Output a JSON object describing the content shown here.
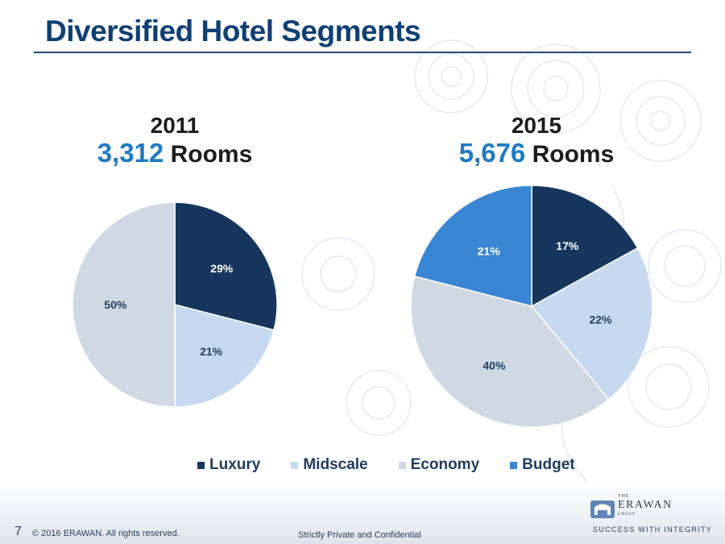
{
  "slide": {
    "title": "Diversified Hotel Segments",
    "page_number": "7",
    "copyright": "© 2016 ERAWAN. All rights reserved.",
    "confidential": "Strictly Private and Confidential"
  },
  "logo": {
    "the": "THE",
    "name": "ERAWAN",
    "group": "GROUP",
    "tagline": "SUCCESS WITH INTEGRITY"
  },
  "colors": {
    "Luxury": "#17365d",
    "Midscale": "#c6d9f1",
    "Economy": "#cfd8e3",
    "Budget": "#3a86d4",
    "title": "#0f3f73",
    "accent": "#1f7ac4"
  },
  "headers": [
    {
      "year": "2011",
      "count": "3,312",
      "unit": " Rooms"
    },
    {
      "year": "2015",
      "count": "5,676",
      "unit": " Rooms"
    }
  ],
  "legend": [
    "Luxury",
    "Midscale",
    "Economy",
    "Budget"
  ],
  "chart_data": [
    {
      "type": "pie",
      "title": "2011",
      "subtitle": "3,312 Rooms",
      "categories": [
        "Luxury",
        "Midscale",
        "Economy"
      ],
      "values": [
        29,
        21,
        50
      ],
      "labels": [
        "29%",
        "21%",
        "50%"
      ],
      "legend_placement": "bottom"
    },
    {
      "type": "pie",
      "title": "2015",
      "subtitle": "5,676 Rooms",
      "categories": [
        "Luxury",
        "Midscale",
        "Economy",
        "Budget"
      ],
      "values": [
        17,
        22,
        40,
        21
      ],
      "labels": [
        "17%",
        "22%",
        "40%",
        "21%"
      ],
      "legend_placement": "bottom"
    }
  ]
}
